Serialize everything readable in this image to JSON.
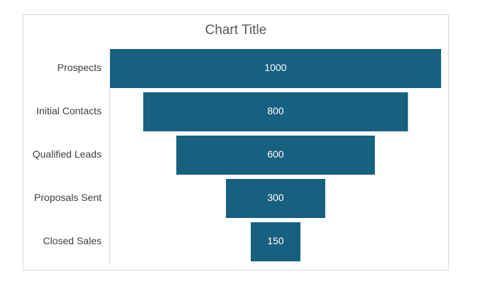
{
  "chart_data": {
    "type": "bar",
    "subtype": "funnel",
    "title": "Chart Title",
    "categories": [
      "Prospects",
      "Initial Contacts",
      "Qualified Leads",
      "Proposals Sent",
      "Closed Sales"
    ],
    "values": [
      1000,
      800,
      600,
      300,
      150
    ],
    "data_labels": [
      "1000",
      "800",
      "600",
      "300",
      "150"
    ],
    "bar_color": "#17607f",
    "legend": "none",
    "grid": false
  }
}
